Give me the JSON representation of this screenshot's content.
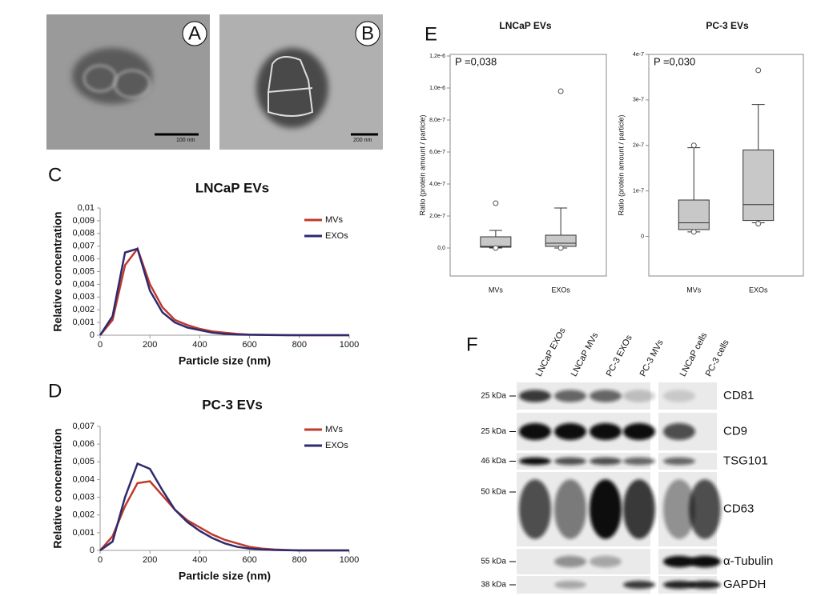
{
  "panel_labels": [
    "A",
    "B",
    "C",
    "D",
    "E",
    "F"
  ],
  "micrographs": [
    {
      "label": "A",
      "scale_bar": "100 nm"
    },
    {
      "label": "B",
      "scale_bar": "200 nm"
    }
  ],
  "chart_data": [
    {
      "type": "line",
      "title": "LNCaP EVs",
      "x_label": "Particle size (nm)",
      "y_label": "Relative concentration",
      "x": [
        0,
        50,
        100,
        150,
        200,
        250,
        300,
        350,
        400,
        450,
        500,
        550,
        600,
        650,
        700,
        750,
        800,
        850,
        900,
        950,
        1000
      ],
      "series": [
        {
          "name": "MVs",
          "color": "#c0392b",
          "values": [
            0,
            0.0012,
            0.0055,
            0.0068,
            0.004,
            0.0022,
            0.0012,
            0.0008,
            0.0005,
            0.0003,
            0.0002,
            0.0001,
            5e-05,
            3e-05,
            2e-05,
            1e-05,
            0,
            0,
            0,
            0,
            0
          ]
        },
        {
          "name": "EXOs",
          "color": "#2e2a6e",
          "values": [
            0,
            0.0015,
            0.0065,
            0.0068,
            0.0035,
            0.0018,
            0.001,
            0.0006,
            0.0004,
            0.0002,
            0.0001,
            5e-05,
            3e-05,
            2e-05,
            1e-05,
            0,
            0,
            0,
            0,
            0,
            0
          ]
        }
      ],
      "xlim": [
        0,
        1000
      ],
      "xticks": [
        0,
        200,
        400,
        600,
        800,
        1000
      ],
      "ylim": [
        0,
        0.01
      ],
      "yticks": [
        0,
        {
          "value": 0.001,
          "label": "0,001"
        },
        {
          "value": 0.002,
          "label": "0,002"
        },
        {
          "value": 0.003,
          "label": "0,003"
        },
        {
          "value": 0.004,
          "label": "0,004"
        },
        {
          "value": 0.005,
          "label": "0,005"
        },
        {
          "value": 0.006,
          "label": "0,006"
        },
        {
          "value": 0.007,
          "label": "0,007"
        },
        {
          "value": 0.008,
          "label": "0,008"
        },
        {
          "value": 0.009,
          "label": "0,009"
        },
        {
          "value": 0.01,
          "label": "0,01"
        }
      ]
    },
    {
      "type": "line",
      "title": "PC-3 EVs",
      "x_label": "Particle size (nm)",
      "y_label": "Relative concentration",
      "x": [
        0,
        50,
        100,
        150,
        200,
        250,
        300,
        350,
        400,
        450,
        500,
        550,
        600,
        650,
        700,
        750,
        800,
        850,
        900,
        950,
        1000
      ],
      "series": [
        {
          "name": "MVs",
          "color": "#c0392b",
          "values": [
            0,
            0.0008,
            0.0025,
            0.0038,
            0.0039,
            0.0031,
            0.0023,
            0.0017,
            0.0013,
            0.0009,
            0.0006,
            0.0004,
            0.0002,
            0.0001,
            5e-05,
            2e-05,
            0,
            0,
            0,
            0,
            0
          ]
        },
        {
          "name": "EXOs",
          "color": "#2e2a6e",
          "values": [
            0,
            0.0005,
            0.003,
            0.0049,
            0.0046,
            0.0034,
            0.0023,
            0.0016,
            0.0011,
            0.0007,
            0.0004,
            0.0002,
            0.0001,
            5e-05,
            2e-05,
            1e-05,
            0,
            0,
            0,
            0,
            0
          ]
        }
      ],
      "xlim": [
        0,
        1000
      ],
      "xticks": [
        0,
        200,
        400,
        600,
        800,
        1000
      ],
      "ylim": [
        0,
        0.007
      ],
      "yticks": [
        0,
        {
          "value": 0.001,
          "label": "0,001"
        },
        {
          "value": 0.002,
          "label": "0,002"
        },
        {
          "value": 0.003,
          "label": "0,003"
        },
        {
          "value": 0.004,
          "label": "0,004"
        },
        {
          "value": 0.005,
          "label": "0,005"
        },
        {
          "value": 0.006,
          "label": "0,006"
        },
        {
          "value": 0.007,
          "label": "0,007"
        }
      ]
    },
    {
      "type": "box",
      "title": "LNCaP EVs",
      "y_label": "Ratio (protein amount / particle)",
      "annotation": "P =0,038",
      "categories": [
        "MVs",
        "EXOs"
      ],
      "color": "#c8c8c8",
      "boxes": [
        {
          "whisker_low": 0,
          "q1": 5e-09,
          "median": 1e-08,
          "q3": 7e-08,
          "whisker_high": 1.1e-07,
          "outliers": [
            2.8e-07,
            0
          ]
        },
        {
          "whisker_low": 0,
          "q1": 1e-08,
          "median": 3e-08,
          "q3": 8e-08,
          "whisker_high": 2.5e-07,
          "outliers": [
            9.8e-07,
            0
          ]
        }
      ],
      "ylim": [
        -1.75e-07,
        1.21e-06
      ],
      "yticks": [
        {
          "value": 0,
          "label": "0,0"
        },
        {
          "value": 2e-07,
          "label": "2,0e-7"
        },
        {
          "value": 4e-07,
          "label": "4,0e-7"
        },
        {
          "value": 6e-07,
          "label": "6,0e-7"
        },
        {
          "value": 8e-07,
          "label": "8,0e-7"
        },
        {
          "value": 1e-06,
          "label": "1,0e-6"
        },
        {
          "value": 1.2e-06,
          "label": "1,2e-6"
        }
      ]
    },
    {
      "type": "box",
      "title": "PC-3 EVs",
      "y_label": "Ratio (protein amount / particle)",
      "annotation": "P =0,030",
      "categories": [
        "MVs",
        "EXOs"
      ],
      "color": "#c8c8c8",
      "boxes": [
        {
          "whisker_low": 1e-08,
          "q1": 1.5e-08,
          "median": 3e-08,
          "q3": 8e-08,
          "whisker_high": 1.95e-07,
          "outliers": [
            2e-07,
            1e-08
          ]
        },
        {
          "whisker_low": 3e-08,
          "q1": 3.5e-08,
          "median": 7e-08,
          "q3": 1.9e-07,
          "whisker_high": 2.9e-07,
          "outliers": [
            3.65e-07,
            2.8e-08
          ]
        }
      ],
      "ylim": [
        -8.7e-08,
        4e-07
      ],
      "yticks": [
        0,
        {
          "value": 1e-07,
          "label": "1e-7"
        },
        {
          "value": 2e-07,
          "label": "2e-7"
        },
        {
          "value": 3e-07,
          "label": "3e-7"
        },
        {
          "value": 4e-07,
          "label": "4e-7"
        }
      ]
    }
  ],
  "blot": {
    "lanes": [
      "LNCaP EXOs",
      "LNCaP MVs",
      "PC-3 EXOs",
      "PC-3 MVs",
      "LNCaP cells",
      "PC-3 cells"
    ],
    "rows": [
      {
        "marker": "25 kDa",
        "protein": "CD81"
      },
      {
        "marker": "25 kDa",
        "protein": "CD9"
      },
      {
        "marker": "46 kDa",
        "protein": "TSG101"
      },
      {
        "marker": "50 kDa",
        "protein": "CD63"
      },
      {
        "marker": "55 kDa",
        "protein": "α-Tubulin"
      },
      {
        "marker": "38 kDa",
        "protein": "GAPDH"
      }
    ]
  }
}
